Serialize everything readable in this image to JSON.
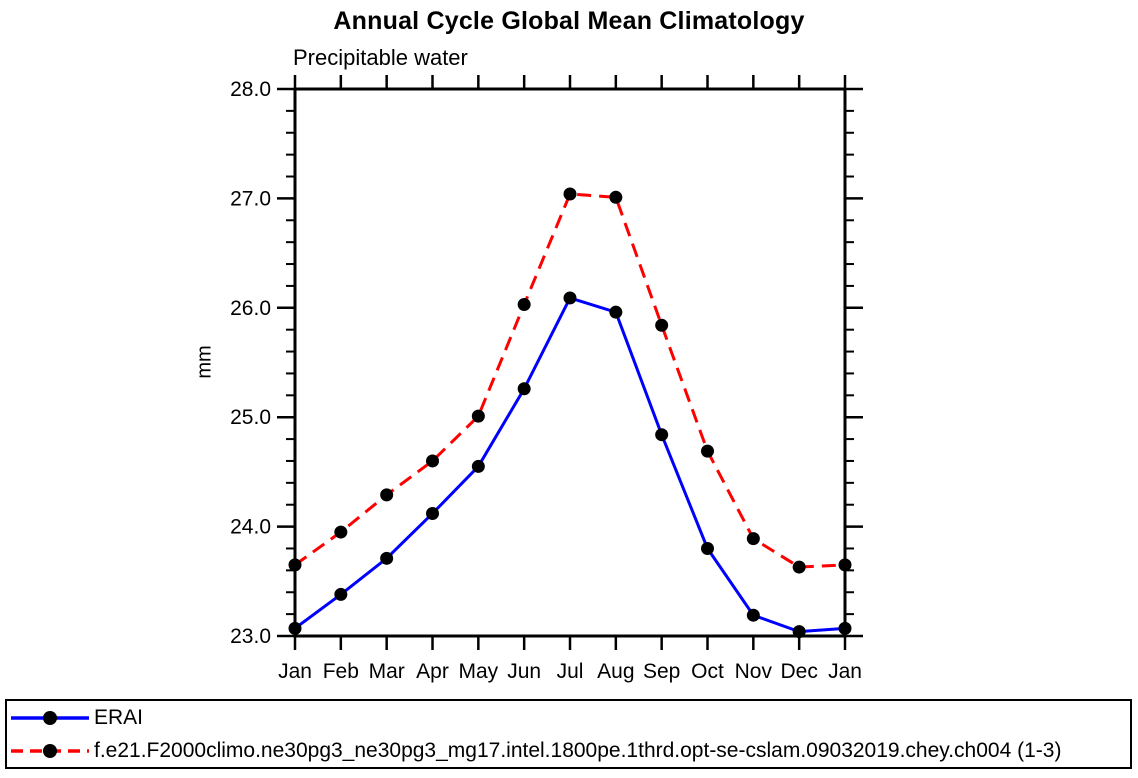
{
  "chart_data": {
    "type": "line",
    "title": "Annual Cycle Global Mean Climatology",
    "subtitle": "Precipitable water",
    "xlabel": "",
    "ylabel": "mm",
    "x_categories": [
      "Jan",
      "Feb",
      "Mar",
      "Apr",
      "May",
      "Jun",
      "Jul",
      "Aug",
      "Sep",
      "Oct",
      "Nov",
      "Dec",
      "Jan"
    ],
    "ylim": [
      23.0,
      28.0
    ],
    "ytick_major": [
      23.0,
      24.0,
      25.0,
      26.0,
      27.0,
      28.0
    ],
    "ytick_labels": [
      "23.0",
      "24.0",
      "25.0",
      "26.0",
      "27.0",
      "28.0"
    ],
    "ytick_minor_interval": 0.2,
    "grid": false,
    "legend_position": "bottom-full-width",
    "axis_color": "#000000",
    "series": [
      {
        "name": "ERAI",
        "color": "#0000ff",
        "line_style": "solid",
        "marker": "filled-circle",
        "marker_color": "#000000",
        "values": [
          23.07,
          23.38,
          23.71,
          24.12,
          24.55,
          25.26,
          26.09,
          25.96,
          24.84,
          23.8,
          23.19,
          23.04,
          23.07
        ]
      },
      {
        "name": "f.e21.F2000climo.ne30pg3_ne30pg3_mg17.intel.1800pe.1thrd.opt-se-cslam.09032019.chey.ch004 (1-3)",
        "color": "#ff0000",
        "line_style": "dashed",
        "marker": "filled-circle",
        "marker_color": "#000000",
        "values": [
          23.65,
          23.95,
          24.29,
          24.6,
          25.01,
          26.03,
          27.04,
          27.01,
          25.84,
          24.69,
          23.89,
          23.63,
          23.65
        ]
      }
    ]
  }
}
